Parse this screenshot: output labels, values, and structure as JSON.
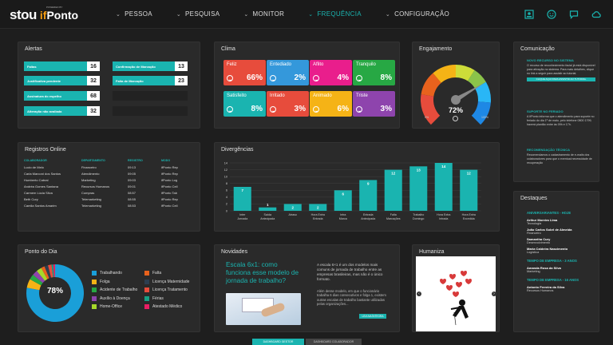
{
  "brand": {
    "stou": "stou",
    "powered": "POWERED BY",
    "ifponto_prefix": "if",
    "ifponto_suffix": "Ponto"
  },
  "nav": [
    {
      "label": "PESSOA"
    },
    {
      "label": "PESQUISA"
    },
    {
      "label": "MONITOR"
    },
    {
      "label": "FREQUÊNCIA"
    },
    {
      "label": "CONFIGURAÇÃO"
    }
  ],
  "alertas": {
    "title": "Alertas",
    "items": [
      {
        "label": "Faltas",
        "value": "16"
      },
      {
        "label": "Justificativa pendente",
        "value": "32"
      },
      {
        "label": "Assinatura do espelho",
        "value": "68"
      },
      {
        "label": "Alteração não avaliada",
        "value": "32"
      },
      {
        "label": "Confirmação de Marcação",
        "value": "13"
      },
      {
        "label": "Falta de Marcação",
        "value": "23"
      }
    ]
  },
  "clima": {
    "title": "Clima",
    "items": [
      {
        "label": "Feliz",
        "pct": "66%",
        "color": "#e74c3c"
      },
      {
        "label": "Entediado",
        "pct": "2%",
        "color": "#3498db"
      },
      {
        "label": "Aflito",
        "pct": "4%",
        "color": "#e91e8c"
      },
      {
        "label": "Tranquilo",
        "pct": "8%",
        "color": "#27a844"
      },
      {
        "label": "Satisfeito",
        "pct": "8%",
        "color": "#1ab4b0"
      },
      {
        "label": "Irritado",
        "pct": "3%",
        "color": "#e74c3c"
      },
      {
        "label": "Animado",
        "pct": "6%",
        "color": "#f5b316"
      },
      {
        "label": "Triste",
        "pct": "3%",
        "color": "#8e44ad"
      }
    ]
  },
  "engajamento": {
    "title": "Engajamento",
    "value_label": "72%",
    "value": 72,
    "min_label": "0%",
    "max_label": "100%"
  },
  "comunicacao": {
    "title": "Comunicação",
    "items": [
      {
        "heading": "NOVO RECURSO NO SISTEMA",
        "text": "O recurso de reconhecimento facial já está disponível para ativação no sistema. Para mais detalhes, clique no link a seguir para assistir ao tutorial.",
        "button": "CLIQUE AQUI PARA ASSISTIR AO TUTORIAL"
      },
      {
        "heading": "SUPORTE NO FERIADO",
        "text": "A IfPonto informa que o atendimento para suporte no feriado do dia 1º de maio, pelo telefone 0800 1799, haverá plantão entre às 09h e 17h."
      },
      {
        "heading": "RECOMENDAÇÃO TÉCNICA",
        "text": "Recomendamos o cadastramento de e-mails dos colaboradores para que o eventual necessidade de recuperação"
      }
    ]
  },
  "registros": {
    "title": "Registros Online",
    "columns": [
      "COLABORADOR",
      "DEPARTAMENTO",
      "REGISTRO",
      "MODO"
    ],
    "rows": [
      [
        "Lucio de Melo",
        "Financeiro",
        "09:13",
        "ifPonto Rep"
      ],
      [
        "Carla Marconi dos Santos",
        "Atendimento",
        "09:05",
        "ifPonto Rep"
      ],
      [
        "Humberto Cabral",
        "Marketing",
        "09:03",
        "ifPonto Log"
      ],
      [
        "Andréa Gomes Santana",
        "Recursos Humanos",
        "09:01",
        "ifPonto Cell"
      ],
      [
        "Carmem Lúcia Silva",
        "Compras",
        "08:57",
        "ifPonto Tab"
      ],
      [
        "Beth Cury",
        "Telemarketing",
        "08:55",
        "ifPonto Rep"
      ],
      [
        "Camila Santos Amarim",
        "Telemarketing",
        "08:53",
        "ifPonto Cell"
      ]
    ]
  },
  "divergencias": {
    "title": "Divergências"
  },
  "chart_data": {
    "type": "bar",
    "categories": [
      "Inter Jornada",
      "Saída Antecipada",
      "Atraso",
      "Hora Extra Entrada",
      "Intra Marca",
      "Entrada Antecipada",
      "Falta Marcações",
      "Trabalho Domingo",
      "Hora Extra Intrada",
      "Hora Extra Excedida"
    ],
    "values": [
      7,
      1,
      2,
      2,
      6,
      9,
      12,
      13,
      14,
      12
    ],
    "ylim": [
      0,
      14
    ],
    "yticks": [
      "0",
      "2",
      "4",
      "6",
      "8",
      "10",
      "12",
      "14"
    ],
    "color": "#1ab4b0",
    "grid": true
  },
  "ponto": {
    "title": "Ponto do Dia",
    "center_label": "78%",
    "legend": [
      {
        "label": "Trabalhando",
        "color": "#1a9fd8",
        "value": 78
      },
      {
        "label": "Folga",
        "color": "#f5b316",
        "value": 5
      },
      {
        "label": "Acidente de Trabalho",
        "color": "#27a844",
        "value": 3
      },
      {
        "label": "Auxílio à Doença",
        "color": "#8e44ad",
        "value": 3
      },
      {
        "label": "Home-Office",
        "color": "#a6d82a",
        "value": 3
      },
      {
        "label": "Falta",
        "color": "#e8621d",
        "value": 2
      },
      {
        "label": "Licença Maternidade",
        "color": "#2c3e50",
        "value": 2
      },
      {
        "label": "Licença Tratamento",
        "color": "#e74c3c",
        "value": 2
      },
      {
        "label": "Férias",
        "color": "#16a085",
        "value": 1
      },
      {
        "label": "Atestado Médico",
        "color": "#e91e63",
        "value": 1
      }
    ]
  },
  "novidades": {
    "title": "Novidades",
    "headline": "Escala 6x1: como funciona esse modelo de jornada de trabalho?",
    "text1": "A escala 6×1 é um dos modelos mais comuns de jornada de trabalho entre as empresas brasileiras, mas não é o único formato.",
    "text2": "Além desse modelo, em que o funcionário trabalha 6 dias consecutivos e folga 1, existem outras escalas de trabalho bastante utilizadas pelas organizações...",
    "button": "LEIA NA ÍNTEGRA"
  },
  "humaniza": {
    "title": "Humaniza"
  },
  "destaques": {
    "title": "Destaques",
    "sections": [
      {
        "heading": "ANIVERSARIANTES - HOJE",
        "people": [
          {
            "name": "Arthur Moreira Lima",
            "dept": "Tecnologia"
          },
          {
            "name": "João Carlos Sobrl de Almeida",
            "dept": "Financeiro"
          },
          {
            "name": "Samantha Cury",
            "dept": "Desenvolvimento"
          },
          {
            "name": "Maria Caldeira Nascimento",
            "dept": "Logística"
          }
        ]
      },
      {
        "heading": "TEMPO DE EMPRESA - 3 ANOS",
        "people": [
          {
            "name": "Amanda Rosa da Silva",
            "dept": "Marketing"
          }
        ]
      },
      {
        "heading": "TEMPO DE EMPRESA - 16 ANOS",
        "people": [
          {
            "name": "Antonio Ferreira da Silva",
            "dept": "Recursos Humanos"
          }
        ]
      }
    ]
  },
  "bottom_tabs": [
    {
      "label": "DASHBOARD GESTOR"
    },
    {
      "label": "DASHBOARD COLABORADOR"
    }
  ]
}
